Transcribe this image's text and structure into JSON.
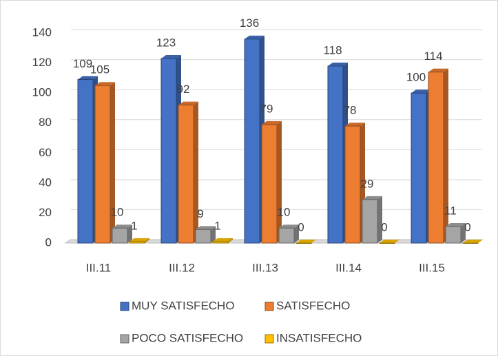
{
  "chart_data": {
    "type": "bar",
    "categories": [
      "III.11",
      "III.12",
      "III.13",
      "III.14",
      "III.15"
    ],
    "series": [
      {
        "name": "MUY SATISFECHO",
        "color": "#4472c4",
        "values": [
          109,
          123,
          136,
          118,
          100
        ]
      },
      {
        "name": "SATISFECHO",
        "color": "#ed7d31",
        "values": [
          105,
          92,
          79,
          78,
          114
        ]
      },
      {
        "name": "POCO SATISFECHO",
        "color": "#a5a5a5",
        "values": [
          10,
          9,
          10,
          29,
          11
        ]
      },
      {
        "name": "INSATISFECHO",
        "color": "#ffc000",
        "values": [
          1,
          1,
          0,
          0,
          0
        ]
      }
    ],
    "ylim": [
      0,
      140
    ],
    "yticks": [
      0,
      20,
      40,
      60,
      80,
      100,
      120,
      140
    ],
    "grid": true,
    "legend": "bottom"
  }
}
